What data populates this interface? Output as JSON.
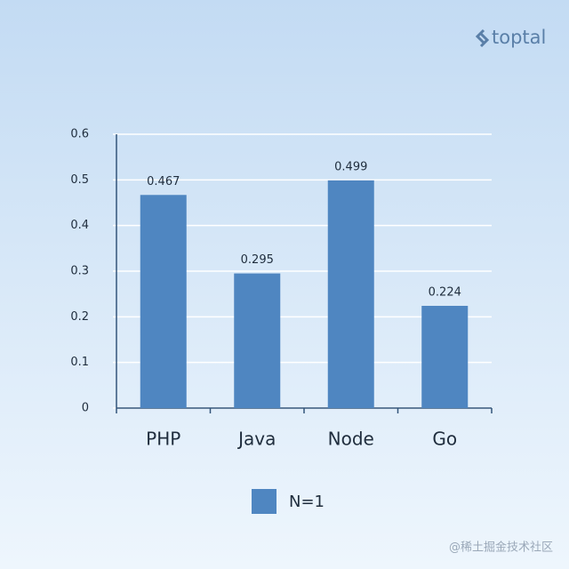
{
  "brand": "toptal",
  "watermark": "@稀土掘金技术社区",
  "chart_data": {
    "type": "bar",
    "categories": [
      "PHP",
      "Java",
      "Node",
      "Go"
    ],
    "series": [
      {
        "name": "N=1",
        "color": "#4f86c1",
        "values": [
          0.467,
          0.295,
          0.499,
          0.224
        ]
      }
    ],
    "ylim": [
      0,
      0.6
    ],
    "yticks": [
      0,
      0.1,
      0.2,
      0.3,
      0.4,
      0.5,
      0.6
    ],
    "grid": true,
    "legend": "bottom"
  }
}
